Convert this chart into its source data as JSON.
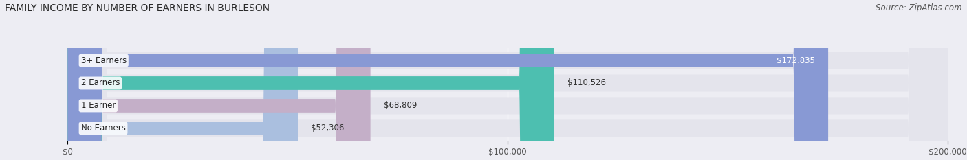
{
  "title": "FAMILY INCOME BY NUMBER OF EARNERS IN BURLESON",
  "source": "Source: ZipAtlas.com",
  "categories": [
    "No Earners",
    "1 Earner",
    "2 Earners",
    "3+ Earners"
  ],
  "values": [
    52306,
    68809,
    110526,
    172835
  ],
  "bar_colors": [
    "#aabfdf",
    "#c4afc8",
    "#4dbfb0",
    "#8899d4"
  ],
  "bar_bg_color": "#e4e4ec",
  "xlim": [
    0,
    200000
  ],
  "xticks": [
    0,
    100000,
    200000
  ],
  "xtick_labels": [
    "$0",
    "$100,000",
    "$200,000"
  ],
  "value_labels": [
    "$52,306",
    "$68,809",
    "$110,526",
    "$172,835"
  ],
  "value_label_color_last": "#ffffff",
  "background_color": "#ededf3",
  "title_fontsize": 10,
  "source_fontsize": 8.5,
  "label_fontsize": 8.5,
  "tick_fontsize": 8.5
}
